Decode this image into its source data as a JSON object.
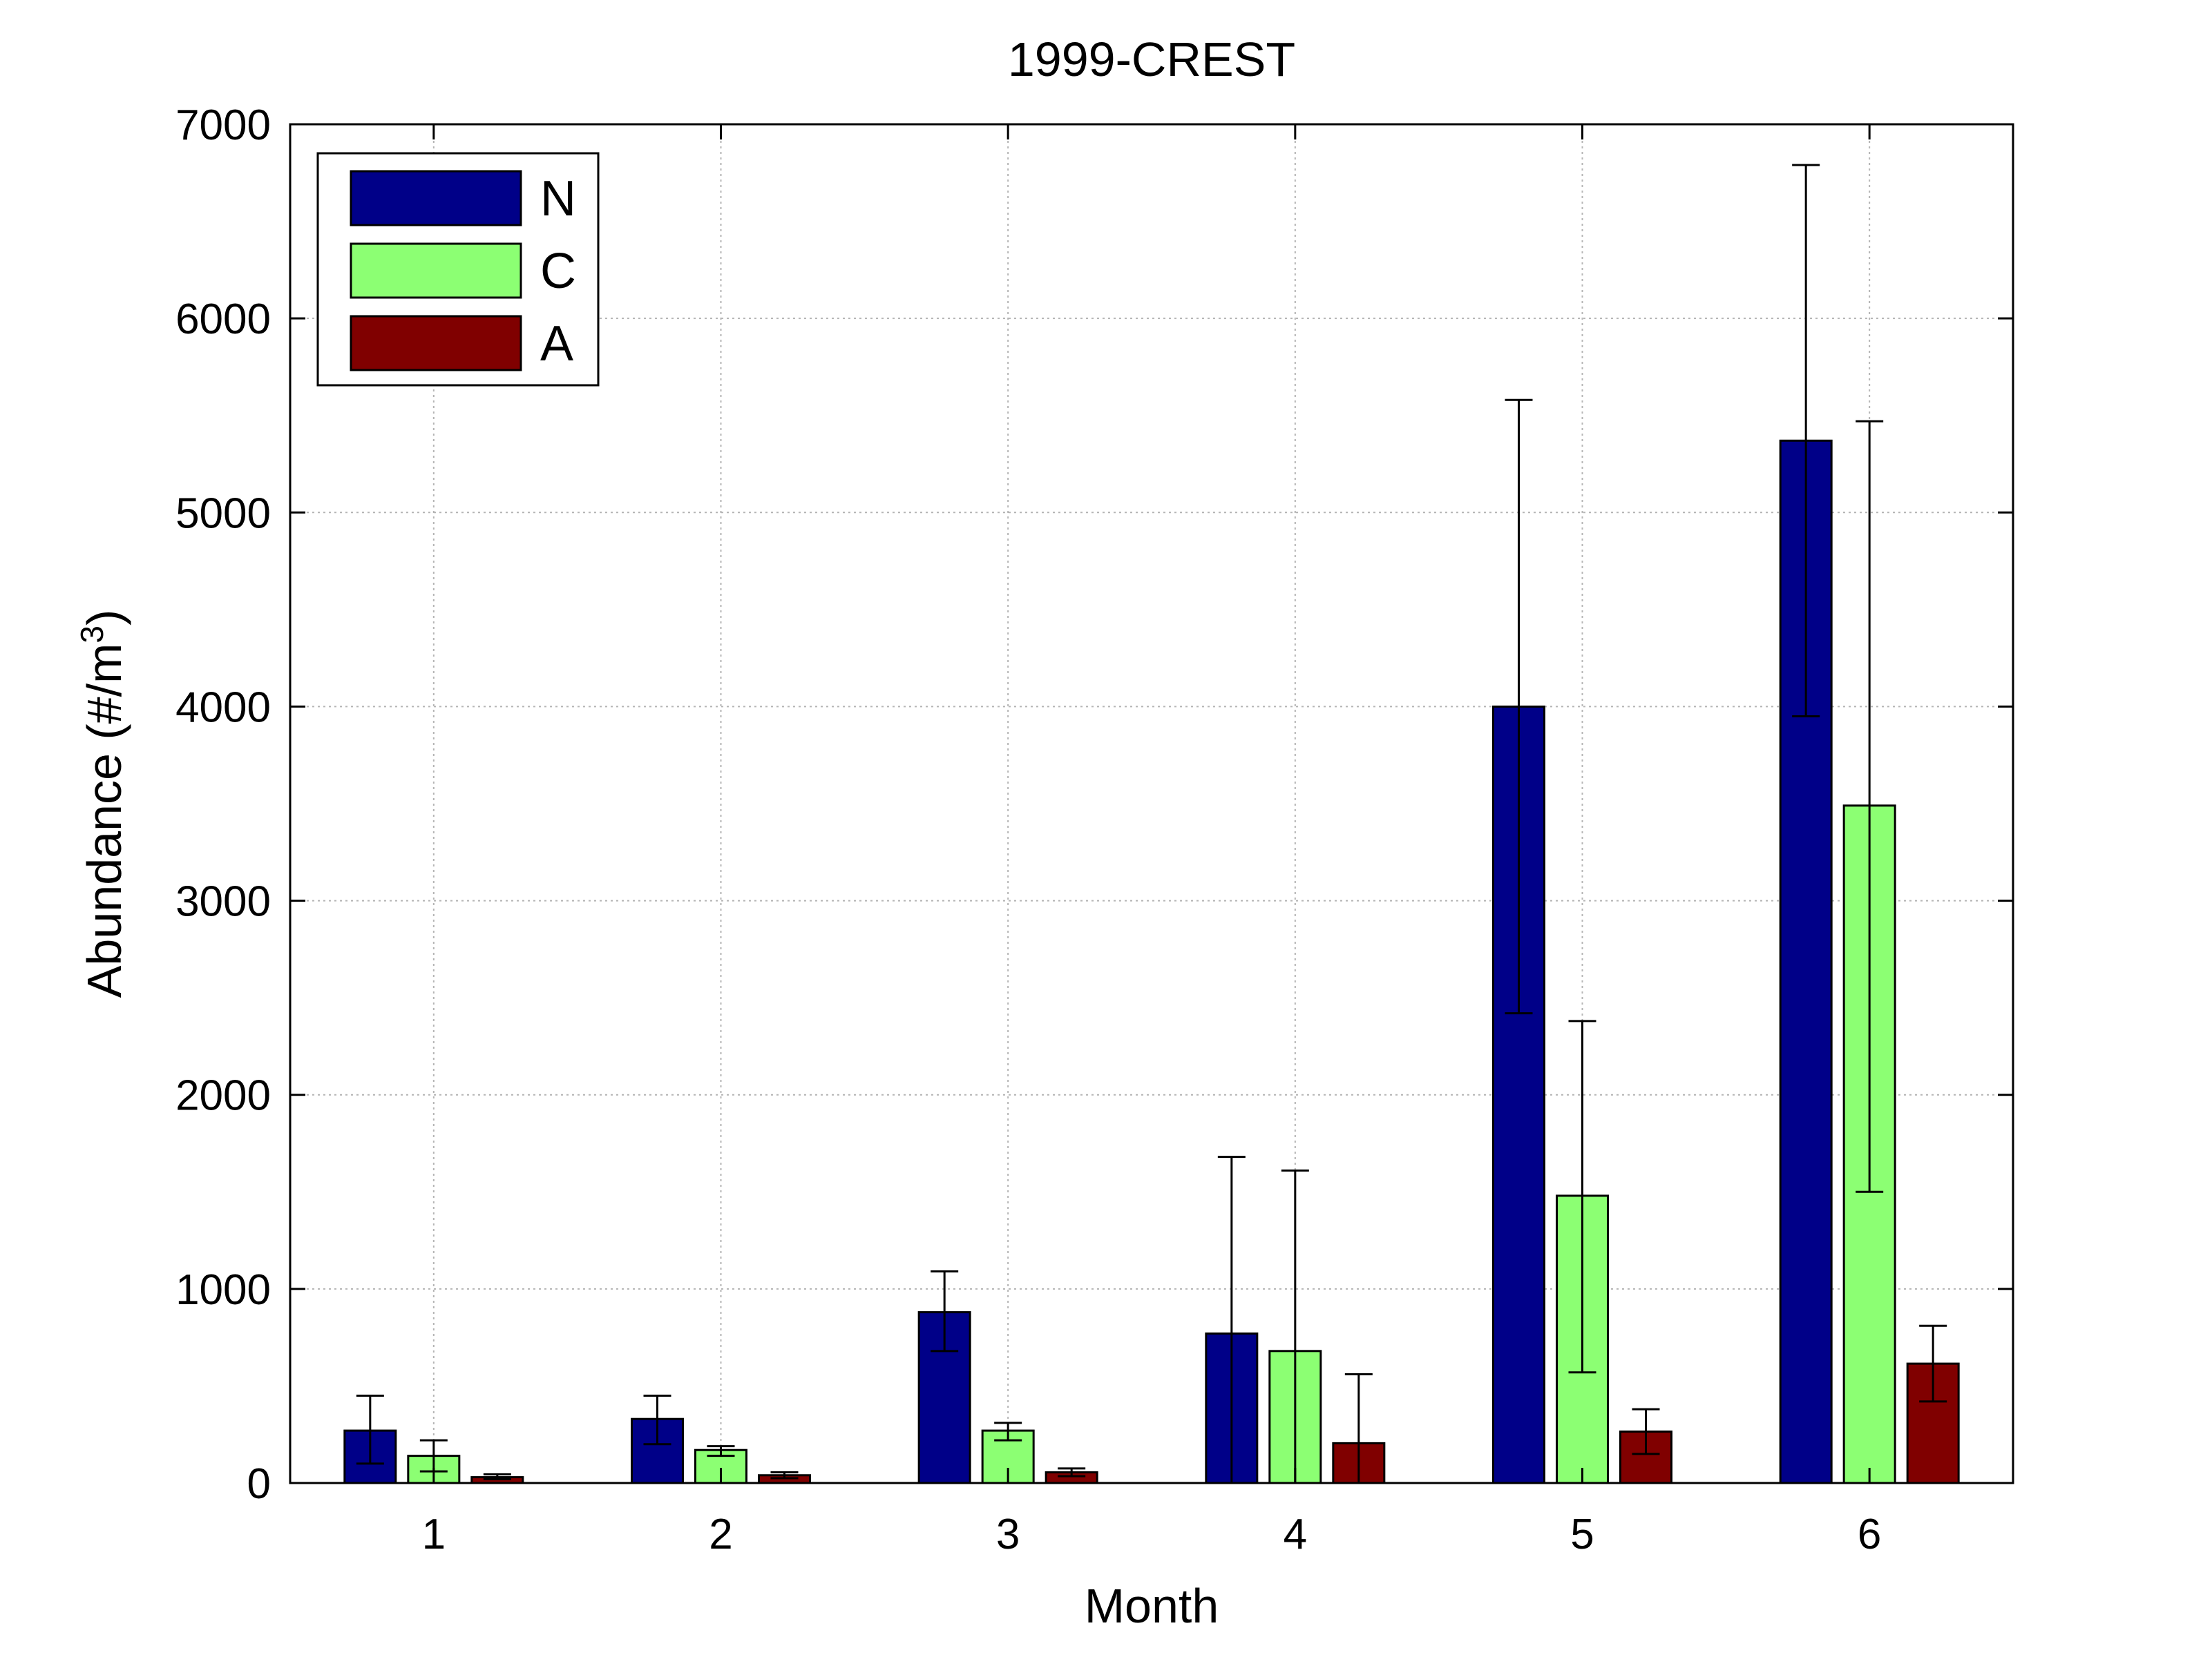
{
  "chart_data": {
    "type": "bar",
    "title": "1999-CREST",
    "xlabel": "Month",
    "ylabel": "Abundance (#/m",
    "ylabel_sup": "3",
    "ylabel_suffix": ")",
    "categories": [
      "1",
      "2",
      "3",
      "4",
      "5",
      "6"
    ],
    "ylim": [
      0,
      7000
    ],
    "yticks": [
      0,
      1000,
      2000,
      3000,
      4000,
      5000,
      6000,
      7000
    ],
    "grid": true,
    "legend_position": "top-left",
    "series": [
      {
        "name": "N",
        "color": "#000088",
        "values": [
          270,
          330,
          880,
          770,
          4000,
          5370
        ],
        "err_low": [
          100,
          200,
          680,
          0,
          2420,
          3950
        ],
        "err_high": [
          450,
          450,
          1090,
          1680,
          5580,
          6790
        ]
      },
      {
        "name": "C",
        "color": "#8cff73",
        "values": [
          140,
          170,
          270,
          680,
          1480,
          3490
        ],
        "err_low": [
          60,
          140,
          220,
          0,
          570,
          1500
        ],
        "err_high": [
          220,
          190,
          310,
          1610,
          2380,
          5470
        ]
      },
      {
        "name": "A",
        "color": "#800000",
        "values": [
          30,
          40,
          55,
          205,
          265,
          615
        ],
        "err_low": [
          20,
          25,
          35,
          0,
          150,
          420
        ],
        "err_high": [
          45,
          55,
          75,
          560,
          380,
          810
        ]
      }
    ]
  }
}
